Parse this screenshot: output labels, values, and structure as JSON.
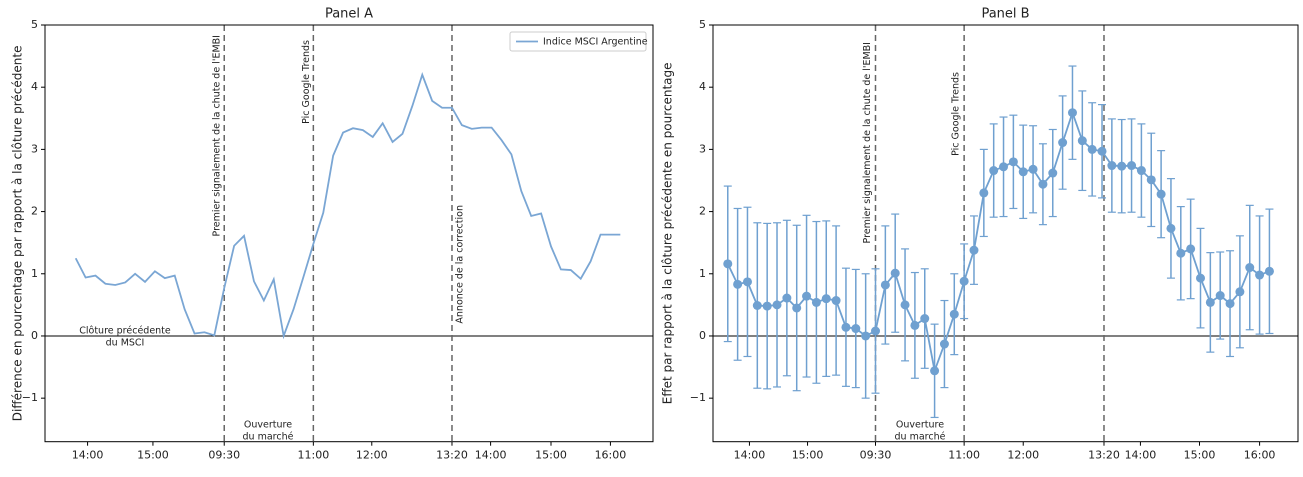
{
  "chart_data": [
    {
      "type": "line",
      "title": "Panel A",
      "ylabel": "Différence en pourcentage par rapport à la clôture précédente",
      "series": [
        {
          "name": "Indice MSCI Argentine",
          "color": "#7aa6d4",
          "values": [
            1.25,
            0.94,
            0.97,
            0.84,
            0.82,
            0.86,
            1.0,
            0.87,
            1.04,
            0.93,
            0.97,
            0.43,
            0.04,
            0.06,
            0.01,
            0.77,
            1.45,
            1.61,
            0.88,
            0.57,
            0.91,
            0.0,
            0.43,
            0.95,
            1.48,
            1.98,
            2.9,
            3.27,
            3.34,
            3.31,
            3.2,
            3.42,
            3.12,
            3.25,
            3.7,
            4.2,
            3.78,
            3.67,
            3.67,
            3.39,
            3.33,
            3.35,
            3.35,
            3.15,
            2.92,
            2.33,
            1.93,
            1.97,
            1.44,
            1.07,
            1.06,
            0.92,
            1.2,
            1.63,
            1.63,
            1.63
          ]
        }
      ],
      "xlim": [
        -3.1,
        58.3
      ],
      "ylim": [
        -1.7,
        5
      ],
      "xticks": [
        {
          "value": 1.2,
          "label": "14:00"
        },
        {
          "value": 7.8,
          "label": "15:00"
        },
        {
          "value": 15,
          "label": "09:30"
        },
        {
          "value": 24,
          "label": "11:00"
        },
        {
          "value": 29.9,
          "label": "12:00"
        },
        {
          "value": 38,
          "label": "13:20"
        },
        {
          "value": 41.9,
          "label": "14:00"
        },
        {
          "value": 48,
          "label": "15:00"
        },
        {
          "value": 54,
          "label": "16:00"
        }
      ],
      "yticks": [
        {
          "value": -1,
          "label": "−1"
        },
        0,
        1,
        2,
        3,
        4,
        5
      ],
      "vlines": [
        {
          "x": 15,
          "label": "Premier signalement de la chute de l'EMBI"
        },
        {
          "x": 24,
          "label": "Pic Google Trends"
        },
        {
          "x": 38,
          "label": "Annonce de la correction"
        }
      ],
      "annotations": [
        [
          "Clôture précédente",
          "du MSCI"
        ],
        [
          "Ouverture",
          "du marché"
        ]
      ],
      "legend": "upper right"
    },
    {
      "type": "errorbar",
      "title": "Panel B",
      "ylabel": "Effet par rapport à la clôture précédente en pourcentage",
      "series": [
        {
          "color": "#6fa0d0",
          "values": [
            1.16,
            0.83,
            0.87,
            0.49,
            0.48,
            0.5,
            0.61,
            0.45,
            0.64,
            0.54,
            0.6,
            0.57,
            0.14,
            0.12,
            0.0,
            0.08,
            0.82,
            1.01,
            0.5,
            0.17,
            0.28,
            -0.56,
            -0.13,
            0.35,
            0.88,
            1.38,
            2.3,
            2.66,
            2.72,
            2.8,
            2.64,
            2.68,
            2.44,
            2.62,
            3.11,
            3.59,
            3.14,
            3.0,
            2.97,
            2.74,
            2.73,
            2.74,
            2.66,
            2.51,
            2.28,
            1.73,
            1.33,
            1.4,
            0.93,
            0.54,
            0.65,
            0.52,
            0.71,
            1.1,
            0.98,
            1.04
          ],
          "errors": [
            1.25,
            1.22,
            1.2,
            1.33,
            1.33,
            1.32,
            1.25,
            1.33,
            1.3,
            1.3,
            1.25,
            1.2,
            0.95,
            0.95,
            1.0,
            1.0,
            0.95,
            0.95,
            0.9,
            0.85,
            0.8,
            0.75,
            0.7,
            0.65,
            0.6,
            0.55,
            0.7,
            0.75,
            0.8,
            0.75,
            0.75,
            0.7,
            0.65,
            0.7,
            0.75,
            0.75,
            0.8,
            0.75,
            0.75,
            0.75,
            0.75,
            0.75,
            0.75,
            0.75,
            0.7,
            0.8,
            0.75,
            0.8,
            0.8,
            0.8,
            0.7,
            0.85,
            0.9,
            1.0,
            0.95,
            1.0
          ]
        }
      ],
      "xlim": [
        -1.5,
        57.9
      ],
      "ylim": [
        -1.7,
        5
      ],
      "xticks": [
        {
          "value": 2.2,
          "label": "14:00"
        },
        {
          "value": 8.1,
          "label": "15:00"
        },
        {
          "value": 15,
          "label": "09:30"
        },
        {
          "value": 24,
          "label": "11:00"
        },
        {
          "value": 30,
          "label": "12:00"
        },
        {
          "value": 38.2,
          "label": "13:20"
        },
        {
          "value": 41.9,
          "label": "14:00"
        },
        {
          "value": 47.9,
          "label": "15:00"
        },
        {
          "value": 54,
          "label": "16:00"
        }
      ],
      "yticks": [
        {
          "value": -1,
          "label": "−1"
        },
        0,
        1,
        2,
        3,
        4,
        5
      ],
      "vlines": [
        {
          "x": 15,
          "label": "Premier signalement de la chute de l'EMBI"
        },
        {
          "x": 24,
          "label": "Pic Google Trends"
        },
        {
          "x": 38.2
        }
      ],
      "annotations": [
        [
          "Ouverture",
          "du marché"
        ]
      ]
    }
  ]
}
